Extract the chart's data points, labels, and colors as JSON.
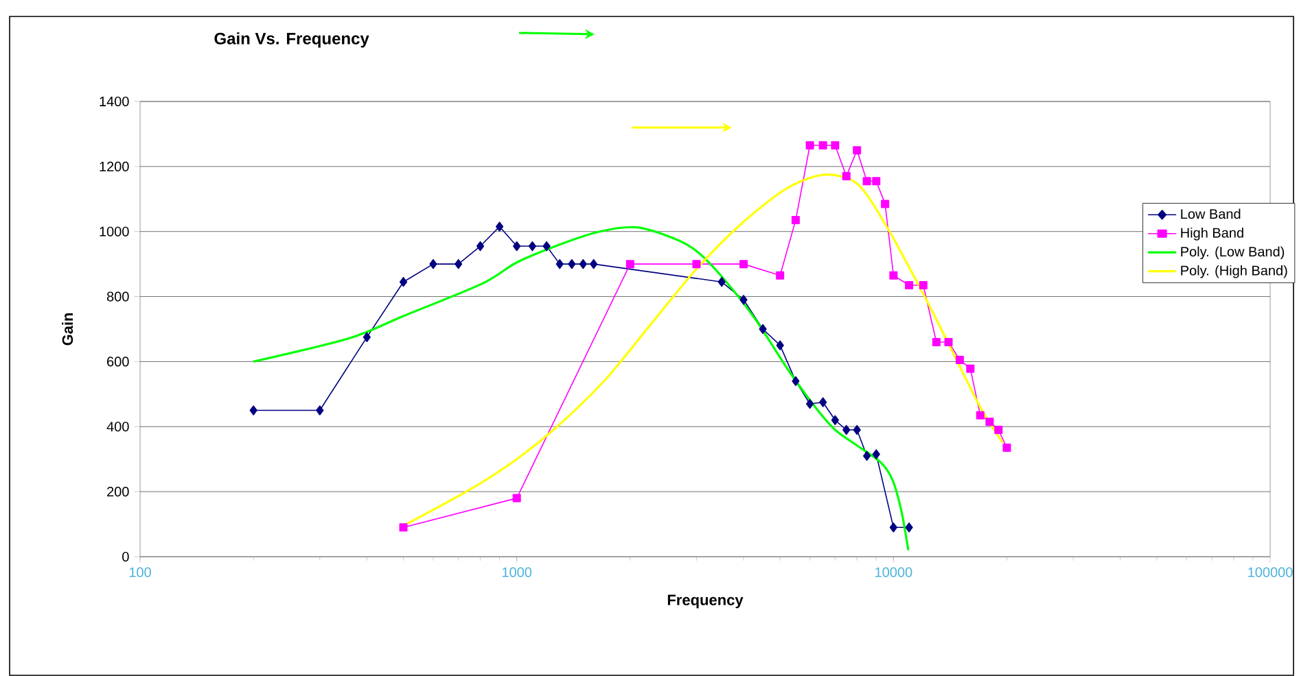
{
  "chart_data": {
    "type": "line",
    "title": "Gain Vs. Frequency",
    "xlabel": "Frequency",
    "ylabel": "Gain",
    "log": "x",
    "grid": "y",
    "legend": "right",
    "xlim": [
      100,
      100000
    ],
    "xticks": [
      100,
      1000,
      10000,
      100000
    ],
    "ylim": [
      0,
      1400
    ],
    "yticks": [
      0,
      200,
      400,
      600,
      800,
      1000,
      1200,
      1400
    ],
    "series": [
      {
        "name": "Low Band",
        "color": "#000080",
        "marker": "diamond",
        "x": [
          200,
          300,
          400,
          500,
          600,
          700,
          800,
          900,
          1000,
          1100,
          1200,
          1300,
          1400,
          1500,
          1600,
          3500,
          4000,
          4500,
          5000,
          5500,
          6000,
          6500,
          7000,
          7500,
          8000,
          8500,
          9000,
          10000,
          11000
        ],
        "values": [
          450,
          450,
          675,
          845,
          900,
          900,
          955,
          1015,
          955,
          955,
          955,
          900,
          900,
          900,
          900,
          845,
          790,
          700,
          650,
          540,
          470,
          475,
          420,
          390,
          390,
          310,
          315,
          90,
          90
        ]
      },
      {
        "name": "High Band",
        "color": "#ff00ff",
        "marker": "square",
        "x": [
          500,
          1000,
          2000,
          3000,
          4000,
          5000,
          5500,
          6000,
          6500,
          7000,
          7500,
          8000,
          8500,
          9000,
          9500,
          10000,
          11000,
          12000,
          13000,
          14000,
          15000,
          16000,
          17000,
          18000,
          19000,
          20000
        ],
        "values": [
          90,
          180,
          900,
          900,
          900,
          865,
          1035,
          1265,
          1265,
          1265,
          1170,
          1250,
          1155,
          1155,
          1085,
          865,
          835,
          835,
          660,
          660,
          605,
          578,
          435,
          415,
          390,
          335
        ]
      },
      {
        "name": "Poly. (Low Band)",
        "color": "#00ff00",
        "marker": "none",
        "x": [
          200,
          360,
          500,
          810,
          1000,
          1300,
          1660,
          2080,
          2600,
          3000,
          3540,
          4300,
          5250,
          6200,
          7000,
          8050,
          9250,
          9950,
          10500,
          10950
        ],
        "values": [
          600,
          672,
          740,
          840,
          905,
          960,
          1000,
          1013,
          980,
          940,
          855,
          730,
          575,
          460,
          390,
          340,
          290,
          235,
          140,
          20
        ]
      },
      {
        "name": "Poly. (High Band)",
        "color": "#ffff00",
        "marker": "none",
        "x": [
          500,
          760,
          1000,
          1280,
          1720,
          2270,
          3000,
          4000,
          5250,
          6600,
          8050,
          9650,
          12100,
          14350,
          17000,
          19500
        ],
        "values": [
          95,
          210,
          300,
          400,
          545,
          715,
          885,
          1030,
          1135,
          1175,
          1145,
          1010,
          800,
          630,
          460,
          350
        ]
      }
    ]
  }
}
